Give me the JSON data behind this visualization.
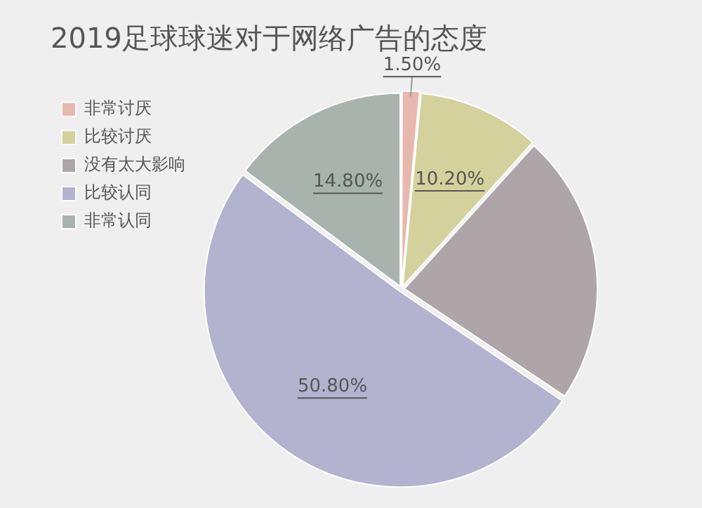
{
  "chart_data": {
    "type": "pie",
    "title": "2019足球球迷对于网络广告的态度",
    "categories": [
      "非常讨厌",
      "比较讨厌",
      "没有太大影响",
      "比较认同",
      "非常认同"
    ],
    "values": [
      1.5,
      10.2,
      22.7,
      50.8,
      14.8
    ],
    "colors": [
      "#e6b8ae",
      "#d4d19c",
      "#aea5a8",
      "#b3b3cf",
      "#a9b3ad"
    ],
    "value_labels": [
      "1.50%",
      "10.20%",
      null,
      "50.80%",
      "14.80%"
    ],
    "legend": "left"
  }
}
